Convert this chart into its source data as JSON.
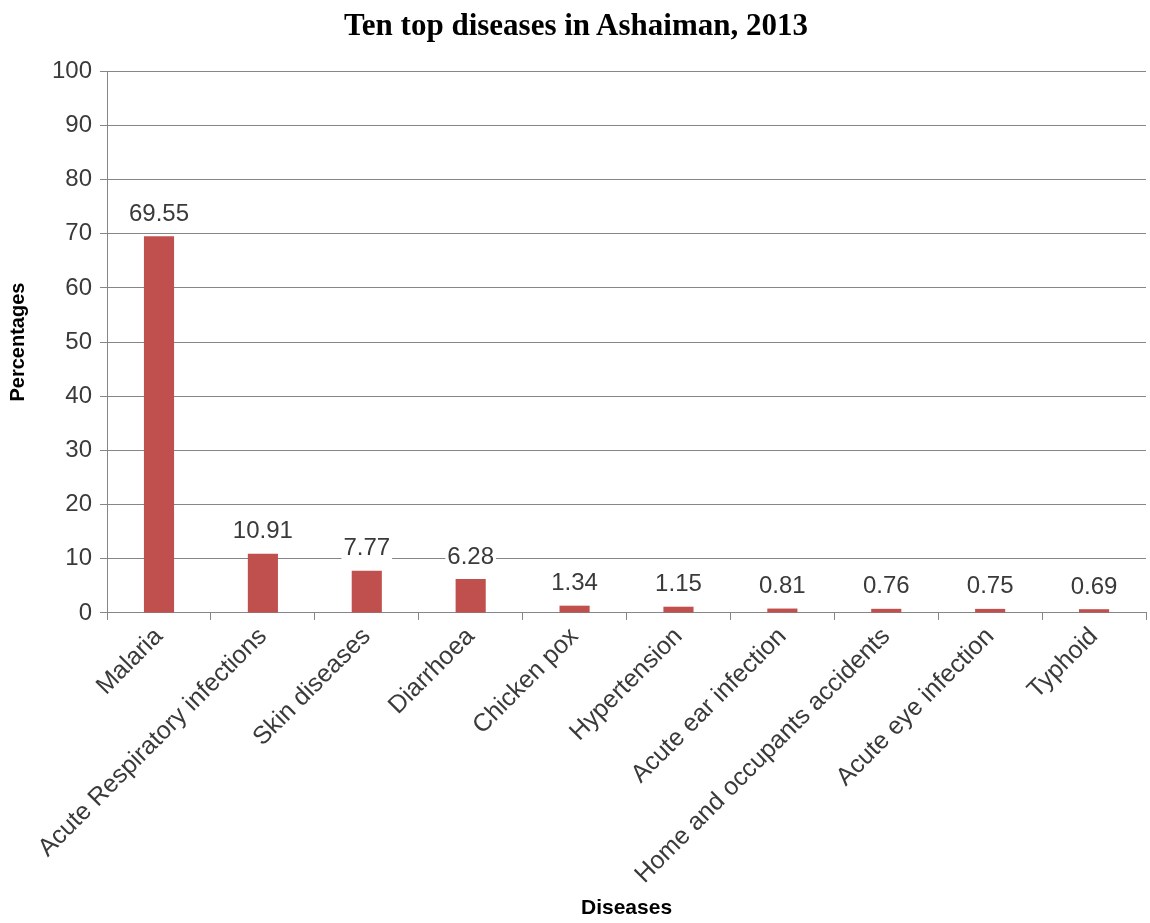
{
  "chart_data": {
    "type": "bar",
    "title": "Ten top diseases in Ashaiman, 2013",
    "xlabel": "Diseases",
    "ylabel": "Percentages",
    "categories": [
      "Malaria",
      "Acute Respiratory infections",
      "Skin diseases",
      "Diarrhoea",
      "Chicken pox",
      "Hypertension",
      "Acute ear infection",
      "Home and occupants accidents",
      "Acute eye infection",
      "Typhoid"
    ],
    "values": [
      69.55,
      10.91,
      7.77,
      6.28,
      1.34,
      1.15,
      0.81,
      0.76,
      0.75,
      0.69
    ],
    "color": "#c0504d",
    "ylim": [
      0,
      100
    ],
    "yticks": [
      0,
      10,
      20,
      30,
      40,
      50,
      60,
      70,
      80,
      90,
      100
    ],
    "grid": "y",
    "data_labels": true
  }
}
